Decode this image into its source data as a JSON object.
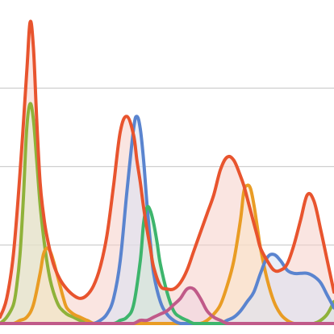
{
  "chart_data": {
    "type": "area",
    "title": "",
    "xlabel": "",
    "ylabel": "",
    "grid": true,
    "legend": "none",
    "xlim": [
      0,
      100
    ],
    "ylim": [
      0,
      100
    ],
    "gridlines_y": [
      25,
      50,
      75
    ],
    "series": [
      {
        "color": "#e8542e",
        "fill": "#f6cfc8",
        "x": [
          0,
          2,
          4,
          6,
          8,
          9,
          10,
          11,
          12,
          13,
          14,
          16,
          18,
          20,
          22,
          24,
          26,
          28,
          30,
          32,
          34,
          36,
          38,
          40,
          41,
          42,
          43,
          44,
          45,
          46,
          48,
          50,
          52,
          54,
          56,
          58,
          60,
          62,
          64,
          66,
          68,
          70,
          72,
          73,
          74,
          75,
          76,
          77,
          78,
          80,
          82,
          84,
          86,
          88,
          90,
          92,
          94,
          96,
          98,
          100
        ],
        "values": [
          2,
          8,
          22,
          48,
          80,
          96,
          88,
          65,
          45,
          35,
          28,
          19,
          14,
          11,
          9,
          8,
          9,
          12,
          18,
          28,
          44,
          61,
          66,
          60,
          52,
          45,
          37,
          30,
          24,
          18,
          12,
          11,
          11,
          13,
          17,
          23,
          29,
          35,
          41,
          49,
          53,
          52,
          47,
          44,
          40,
          36,
          32,
          28,
          24,
          20,
          17,
          17,
          19,
          25,
          33,
          41,
          39,
          30,
          20,
          10
        ]
      },
      {
        "color": "#8fb23a",
        "fill": "#dde9c9",
        "x": [
          0,
          2,
          4,
          5,
          6,
          7,
          8,
          9,
          10,
          11,
          12,
          13,
          14,
          15,
          16,
          17,
          18,
          20,
          22,
          24,
          26,
          28,
          30,
          32,
          34,
          36,
          38,
          40,
          42,
          44,
          46,
          48,
          50,
          52,
          54,
          56,
          58,
          60,
          62,
          64,
          66,
          68,
          70,
          72,
          74,
          76,
          78,
          80,
          82,
          84,
          86,
          88,
          90,
          92,
          94,
          96,
          98,
          100
        ],
        "values": [
          0,
          2,
          6,
          12,
          22,
          40,
          62,
          70,
          65,
          52,
          38,
          28,
          20,
          14,
          10,
          7,
          5,
          3,
          2,
          1,
          1,
          0,
          0,
          0,
          0,
          0,
          0,
          0,
          0,
          0,
          0,
          0,
          0,
          0,
          0,
          0,
          0,
          0,
          0,
          0,
          0,
          0,
          0,
          0,
          0,
          0,
          0,
          0,
          0,
          0,
          0,
          0,
          0,
          0,
          0,
          1,
          3,
          7
        ]
      },
      {
        "color": "#e99c24",
        "fill": "#f9e3c7",
        "x": [
          0,
          2,
          4,
          6,
          8,
          10,
          12,
          13,
          14,
          15,
          16,
          17,
          18,
          19,
          20,
          22,
          24,
          26,
          28,
          30,
          32,
          34,
          36,
          38,
          40,
          42,
          44,
          46,
          48,
          50,
          52,
          54,
          56,
          58,
          60,
          62,
          64,
          66,
          68,
          70,
          72,
          73,
          74,
          75,
          76,
          77,
          78,
          80,
          82,
          84,
          86,
          88,
          90,
          92,
          94,
          96,
          98,
          100
        ],
        "values": [
          0,
          0,
          0,
          1,
          2,
          6,
          16,
          22,
          24,
          23,
          20,
          16,
          12,
          8,
          5,
          3,
          2,
          1,
          0,
          0,
          0,
          0,
          0,
          0,
          0,
          0,
          0,
          0,
          0,
          0,
          0,
          0,
          0,
          0,
          0,
          1,
          3,
          6,
          12,
          20,
          33,
          42,
          44,
          43,
          38,
          31,
          24,
          14,
          7,
          3,
          1,
          0,
          0,
          0,
          0,
          0,
          0,
          0
        ]
      },
      {
        "color": "#5a84cf",
        "fill": "#d9e1f4",
        "x": [
          0,
          10,
          20,
          26,
          28,
          30,
          32,
          34,
          36,
          38,
          40,
          41,
          42,
          43,
          44,
          45,
          46,
          48,
          50,
          52,
          54,
          56,
          58,
          60,
          62,
          64,
          66,
          68,
          70,
          72,
          74,
          76,
          78,
          80,
          82,
          84,
          86,
          88,
          90,
          92,
          94,
          96,
          98,
          100
        ],
        "values": [
          0,
          0,
          0,
          0,
          0,
          1,
          3,
          8,
          20,
          42,
          62,
          66,
          62,
          52,
          38,
          26,
          16,
          7,
          3,
          1,
          0,
          0,
          0,
          0,
          0,
          0,
          0,
          1,
          2,
          4,
          7,
          10,
          16,
          21,
          22,
          20,
          17,
          16,
          16,
          16,
          15,
          13,
          9,
          5
        ]
      },
      {
        "color": "#3db56c",
        "fill": "#cfe7d6",
        "x": [
          0,
          10,
          20,
          30,
          34,
          36,
          38,
          40,
          42,
          43,
          44,
          45,
          46,
          47,
          48,
          50,
          52,
          54,
          56,
          58,
          60,
          62,
          64,
          66,
          68,
          70,
          80,
          90,
          100
        ],
        "values": [
          0,
          0,
          0,
          0,
          0,
          1,
          2,
          6,
          20,
          32,
          37,
          36,
          32,
          26,
          19,
          10,
          4,
          2,
          1,
          0,
          0,
          0,
          0,
          0,
          0,
          0,
          0,
          0,
          0
        ]
      },
      {
        "color": "#c05a89",
        "fill": "#efd3e0",
        "x": [
          0,
          10,
          20,
          30,
          34,
          36,
          38,
          40,
          42,
          44,
          46,
          48,
          50,
          52,
          54,
          56,
          58,
          60,
          62,
          64,
          66,
          68,
          70,
          72,
          74,
          76,
          78,
          80,
          82,
          84,
          86,
          88,
          90,
          92,
          94,
          96,
          98,
          100
        ],
        "values": [
          0,
          0,
          0,
          0,
          0,
          0,
          0,
          0,
          1,
          1,
          2,
          3,
          4,
          6,
          8,
          11,
          11,
          8,
          4,
          2,
          1,
          0,
          0,
          0,
          0,
          0,
          0,
          0,
          0,
          0,
          0,
          0,
          0,
          0,
          0,
          0,
          0,
          0
        ]
      }
    ]
  }
}
